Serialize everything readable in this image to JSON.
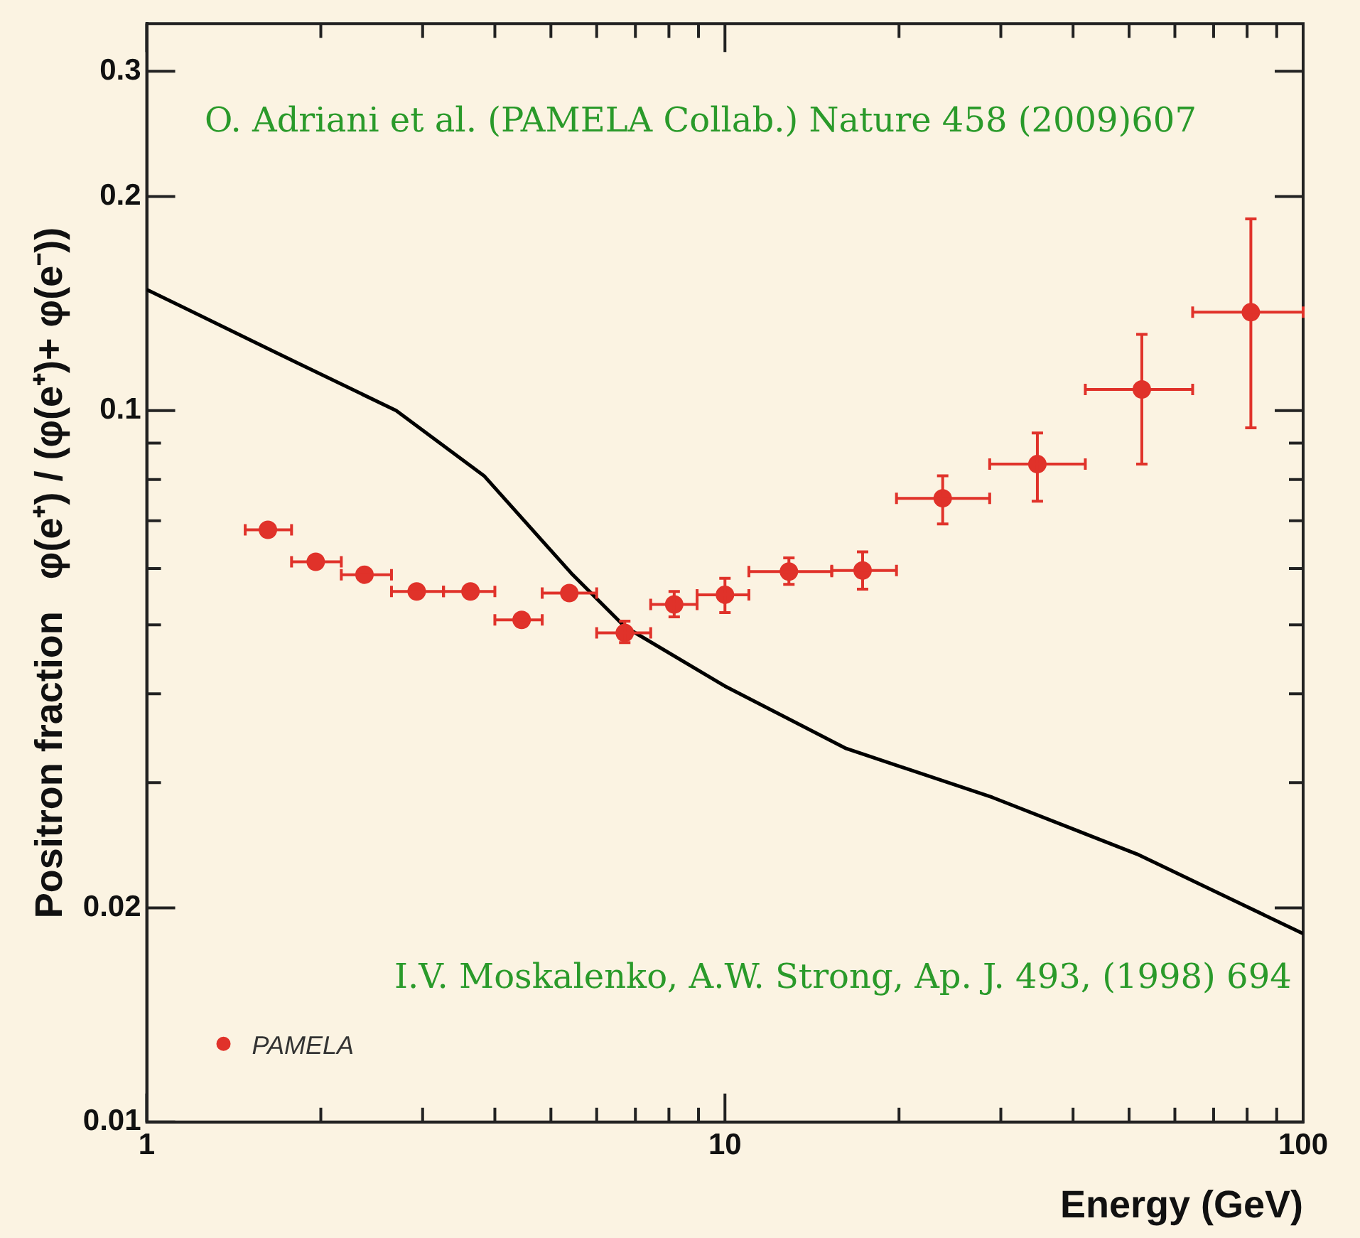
{
  "chart_data": {
    "type": "scatter",
    "xlabel": "Energy (GeV)",
    "ylabel": "Positron fraction   φ(e⁺) / (φ(e⁺)+ φ(e⁻))",
    "log": "xy",
    "xlim": [
      1,
      100
    ],
    "ylim": [
      0.01,
      0.35
    ],
    "xticks": [
      1,
      {
        "value": 2,
        "label": null
      },
      {
        "value": 3,
        "label": null
      },
      {
        "value": 4,
        "label": null
      },
      {
        "value": 5,
        "label": null
      },
      {
        "value": 6,
        "label": null
      },
      {
        "value": 7,
        "label": null
      },
      {
        "value": 8,
        "label": null
      },
      {
        "value": 9,
        "label": null
      },
      10,
      {
        "value": 20,
        "label": null
      },
      {
        "value": 30,
        "label": null
      },
      {
        "value": 40,
        "label": null
      },
      {
        "value": 50,
        "label": null
      },
      {
        "value": 60,
        "label": null
      },
      {
        "value": 70,
        "label": null
      },
      {
        "value": 80,
        "label": null
      },
      {
        "value": 90,
        "label": null
      },
      100
    ],
    "yticks": [
      0.01,
      0.02,
      {
        "value": 0.03,
        "label": null
      },
      {
        "value": 0.04,
        "label": null
      },
      {
        "value": 0.05,
        "label": null
      },
      {
        "value": 0.06,
        "label": null
      },
      {
        "value": 0.07,
        "label": null
      },
      {
        "value": 0.08,
        "label": null
      },
      {
        "value": 0.09,
        "label": null
      },
      0.1,
      0.2,
      0.3
    ],
    "grid": false,
    "legend": "bottom left",
    "marker": "circle",
    "annotations": [
      "O. Adriani et al. (PAMELA Collab.) Nature 458 (2009)607",
      "I.V. Moskalenko, A.W. Strong, Ap. J. 493, (1998) 694"
    ],
    "series": [
      {
        "name": "PAMELA",
        "color": "#e0322a",
        "x": [
          1.62,
          1.96,
          2.38,
          2.93,
          3.63,
          4.45,
          5.38,
          6.71,
          8.17,
          10.0,
          12.9,
          17.3,
          23.8,
          34.7,
          52.6,
          81.2
        ],
        "values": [
          0.068,
          0.0613,
          0.0588,
          0.0557,
          0.0557,
          0.0508,
          0.0554,
          0.0487,
          0.0534,
          0.0551,
          0.0594,
          0.0596,
          0.0753,
          0.0841,
          0.1071,
          0.1375
        ],
        "errors": [
          null,
          null,
          null,
          null,
          null,
          null,
          null,
          [
            0.0472,
            0.0506
          ],
          [
            0.0513,
            0.0557
          ],
          [
            0.052,
            0.0581
          ],
          [
            0.057,
            0.0621
          ],
          [
            0.0561,
            0.0633
          ],
          [
            0.0693,
            0.081
          ],
          [
            0.0746,
            0.093
          ],
          [
            0.0841,
            0.128
          ],
          [
            0.0946,
            0.186
          ]
        ],
        "xerrors": [
          [
            1.48,
            1.78
          ],
          [
            1.78,
            2.17
          ],
          [
            2.17,
            2.65
          ],
          [
            2.65,
            3.26
          ],
          [
            3.26,
            4.0
          ],
          [
            4.0,
            4.83
          ],
          [
            4.83,
            6.0
          ],
          [
            6.0,
            7.44
          ],
          [
            7.44,
            8.95
          ],
          [
            8.95,
            11.0
          ],
          [
            11.0,
            15.3
          ],
          [
            15.3,
            19.8
          ],
          [
            19.8,
            28.7
          ],
          [
            28.7,
            42.0
          ],
          [
            42.0,
            64.4
          ],
          [
            64.4,
            100
          ]
        ]
      },
      {
        "type": "line",
        "color": "#000000",
        "marker": "none",
        "x": [
          1,
          1.61,
          2.7,
          3.83,
          5.42,
          6.71,
          10,
          16.2,
          29,
          51.6,
          100
        ],
        "values": [
          0.148,
          0.1225,
          0.1,
          0.081,
          0.0591,
          0.0497,
          0.041,
          0.0335,
          0.0286,
          0.0238,
          0.0184
        ]
      }
    ]
  }
}
